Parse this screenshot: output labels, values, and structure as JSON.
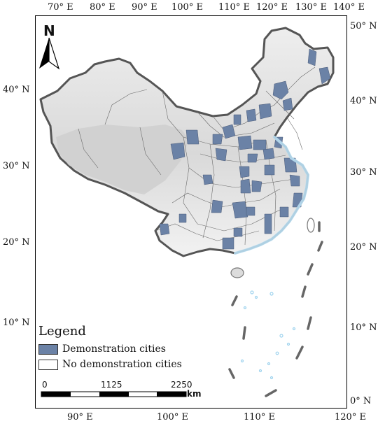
{
  "map": {
    "top_ticks": [
      "70° E",
      "80° E",
      "90° E",
      "100° E",
      "110° E",
      "120° E",
      "130° E",
      "140° E"
    ],
    "bottom_ticks": [
      "90° E",
      "100° E",
      "110° E",
      "120° E"
    ],
    "left_ticks": [
      "40° N",
      "30° N",
      "20° N",
      "10° N"
    ],
    "right_ticks": [
      "50° N",
      "40° N",
      "30° N",
      "20° N",
      "10° N",
      "0° N"
    ],
    "north_arrow_label": "N",
    "colors": {
      "demonstration": "#6b82a6",
      "no_demonstration": "#ffffff",
      "terrain_light": "#ededed",
      "terrain_dark": "#c4c4c4",
      "border": "#555555",
      "water": "#b9def2"
    }
  },
  "legend": {
    "title": "Legend",
    "items": [
      {
        "label": "Demonstration cities",
        "color": "#6b82a6"
      },
      {
        "label": "No demonstration cities",
        "color": "#ffffff"
      }
    ]
  },
  "scale_bar": {
    "labels": [
      "0",
      "1125",
      "2250"
    ],
    "unit": "km"
  }
}
